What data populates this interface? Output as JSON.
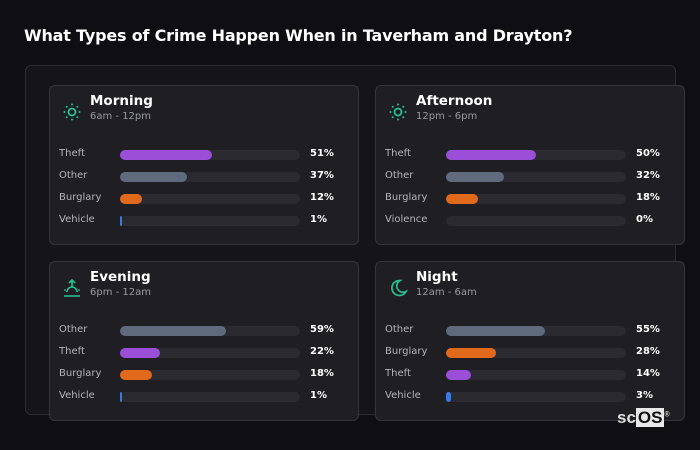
{
  "title": "What Types of Crime Happen When in Taverham and Drayton?",
  "colors": {
    "Theft": "#9b4fd9",
    "Other": "#5f6a7d",
    "Burglary": "#e0691c",
    "Vehicle": "#3e78d8",
    "Violence": "#3e78d8",
    "accent": "#26c28f"
  },
  "chart_data": [
    {
      "type": "bar",
      "orientation": "horizontal",
      "title": "Morning",
      "subtitle": "6am - 12pm",
      "icon": "sun-icon",
      "categories": [
        "Theft",
        "Other",
        "Burglary",
        "Vehicle"
      ],
      "values": [
        51,
        37,
        12,
        1
      ],
      "labels": [
        "51%",
        "37%",
        "12%",
        "1%"
      ],
      "xlim": [
        0,
        100
      ]
    },
    {
      "type": "bar",
      "orientation": "horizontal",
      "title": "Afternoon",
      "subtitle": "12pm - 6pm",
      "icon": "sun-icon",
      "categories": [
        "Theft",
        "Other",
        "Burglary",
        "Violence"
      ],
      "values": [
        50,
        32,
        18,
        0
      ],
      "labels": [
        "50%",
        "32%",
        "18%",
        "0%"
      ],
      "xlim": [
        0,
        100
      ]
    },
    {
      "type": "bar",
      "orientation": "horizontal",
      "title": "Evening",
      "subtitle": "6pm - 12am",
      "icon": "sunset-icon",
      "categories": [
        "Other",
        "Theft",
        "Burglary",
        "Vehicle"
      ],
      "values": [
        59,
        22,
        18,
        1
      ],
      "labels": [
        "59%",
        "22%",
        "18%",
        "1%"
      ],
      "xlim": [
        0,
        100
      ]
    },
    {
      "type": "bar",
      "orientation": "horizontal",
      "title": "Night",
      "subtitle": "12am - 6am",
      "icon": "moon-icon",
      "categories": [
        "Other",
        "Burglary",
        "Theft",
        "Vehicle"
      ],
      "values": [
        55,
        28,
        14,
        3
      ],
      "labels": [
        "55%",
        "28%",
        "14%",
        "3%"
      ],
      "xlim": [
        0,
        100
      ]
    }
  ],
  "logo": {
    "text_a": "sc",
    "text_b": "OS",
    "mark": "®"
  }
}
